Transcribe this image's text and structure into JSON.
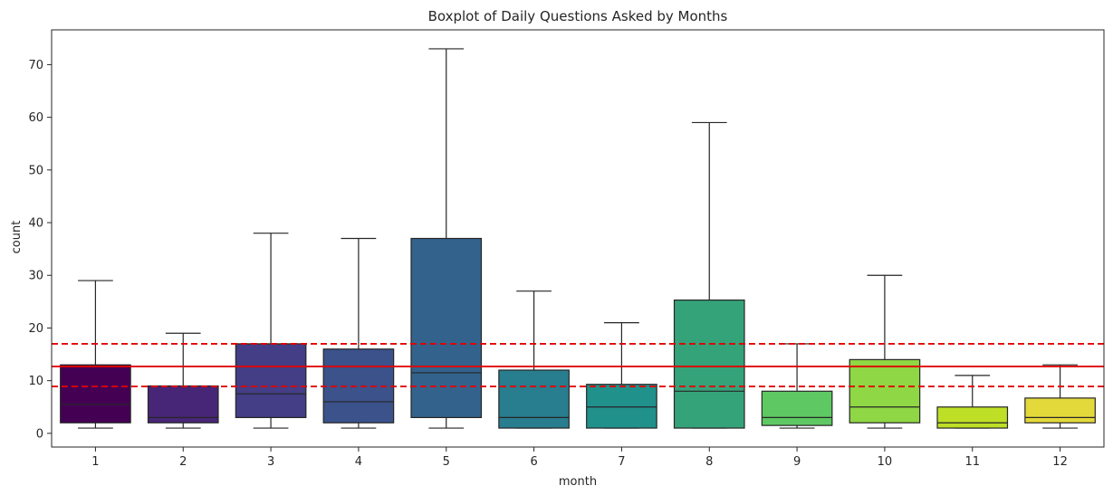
{
  "chart_data": {
    "type": "box",
    "title": "Boxplot of Daily Questions Asked by Months",
    "xlabel": "month",
    "ylabel": "count",
    "categories": [
      "1",
      "2",
      "3",
      "4",
      "5",
      "6",
      "7",
      "8",
      "9",
      "10",
      "11",
      "12"
    ],
    "boxes": [
      {
        "min": 1,
        "q1": 2,
        "median": 5.5,
        "q3": 13,
        "max": 29,
        "color": "#440154"
      },
      {
        "min": 1,
        "q1": 2,
        "median": 3,
        "q3": 9,
        "max": 19,
        "color": "#482677"
      },
      {
        "min": 1,
        "q1": 3,
        "median": 7.5,
        "q3": 17,
        "max": 38,
        "color": "#433e85"
      },
      {
        "min": 1,
        "q1": 2,
        "median": 6,
        "q3": 16,
        "max": 37,
        "color": "#3b528b"
      },
      {
        "min": 1,
        "q1": 3,
        "median": 11.5,
        "q3": 37,
        "max": 73,
        "color": "#33638d"
      },
      {
        "min": 1,
        "q1": 1,
        "median": 3,
        "q3": 12,
        "max": 27,
        "color": "#287d8e"
      },
      {
        "min": 1,
        "q1": 1,
        "median": 5,
        "q3": 9.3,
        "max": 21,
        "color": "#21918c"
      },
      {
        "min": 1,
        "q1": 1,
        "median": 8,
        "q3": 25.3,
        "max": 59,
        "color": "#35a37a"
      },
      {
        "min": 1,
        "q1": 1.5,
        "median": 3,
        "q3": 8,
        "max": 17,
        "color": "#5ec962"
      },
      {
        "min": 1,
        "q1": 2,
        "median": 5,
        "q3": 14,
        "max": 30,
        "color": "#8fd744"
      },
      {
        "min": 1,
        "q1": 1,
        "median": 2,
        "q3": 5,
        "max": 11,
        "color": "#bddf26"
      },
      {
        "min": 1,
        "q1": 2,
        "median": 3,
        "q3": 6.7,
        "max": 13,
        "color": "#e4d93b"
      }
    ],
    "reference_lines": [
      {
        "value": 12.7,
        "style": "solid",
        "color": "#e00000"
      },
      {
        "value": 17,
        "style": "dashed",
        "color": "#e00000"
      },
      {
        "value": 8.9,
        "style": "dashed",
        "color": "#e00000"
      }
    ],
    "ylim": [
      -2.6,
      76.6
    ],
    "yticks": [
      "0",
      "10",
      "20",
      "30",
      "40",
      "50",
      "60",
      "70"
    ],
    "grid": false,
    "legend": "none"
  }
}
